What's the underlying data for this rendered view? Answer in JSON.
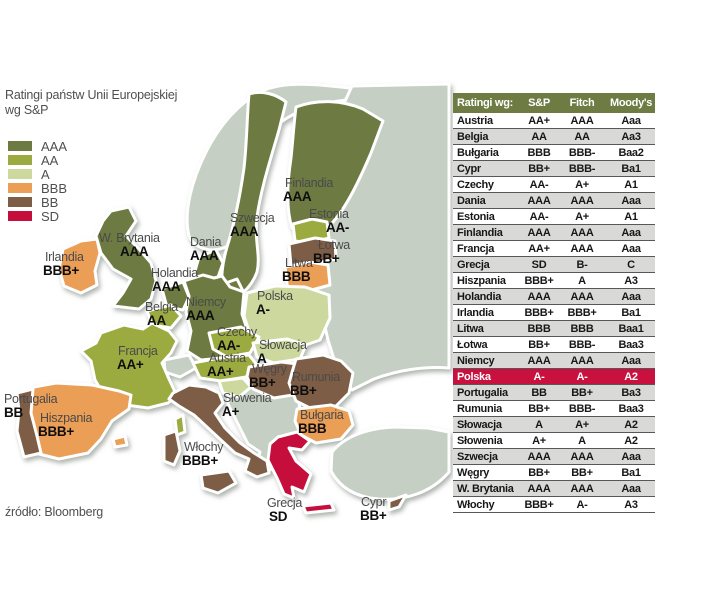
{
  "title": {
    "line1": "Ratingi państw Unii Europejskiej",
    "line2": "wg S&P"
  },
  "legend": {
    "items": [
      {
        "label": "AAA",
        "color": "#6d7a41"
      },
      {
        "label": "AA",
        "color": "#9cab40"
      },
      {
        "label": "A",
        "color": "#cdd89e"
      },
      {
        "label": "BBB",
        "color": "#eb9e55"
      },
      {
        "label": "BB",
        "color": "#7d5d46"
      },
      {
        "label": "SD",
        "color": "#c60e3d"
      }
    ]
  },
  "source": "źródło: Bloomberg",
  "map": {
    "non_eu_color": "#c6cfc3",
    "sea_color": "#ffffff"
  },
  "table": {
    "header": {
      "col0": "Ratingi wg:",
      "col1": "S&P",
      "col2": "Fitch",
      "col3": "Moody's"
    },
    "header_bg": "#6e7b42",
    "alt_row_bg": "#d9dad8",
    "highlight_bg": "#c8113e",
    "rows": [
      {
        "country": "Austria",
        "sp": "AA+",
        "fitch": "AAA",
        "moodys": "Aaa"
      },
      {
        "country": "Belgia",
        "sp": "AA",
        "fitch": "AA",
        "moodys": "Aa3"
      },
      {
        "country": "Bułgaria",
        "sp": "BBB",
        "fitch": "BBB-",
        "moodys": "Baa2"
      },
      {
        "country": "Cypr",
        "sp": "BB+",
        "fitch": "BBB-",
        "moodys": "Ba1"
      },
      {
        "country": "Czechy",
        "sp": "AA-",
        "fitch": "A+",
        "moodys": "A1"
      },
      {
        "country": "Dania",
        "sp": "AAA",
        "fitch": "AAA",
        "moodys": "Aaa"
      },
      {
        "country": "Estonia",
        "sp": "AA-",
        "fitch": "A+",
        "moodys": "A1"
      },
      {
        "country": "Finlandia",
        "sp": "AAA",
        "fitch": "AAA",
        "moodys": "Aaa"
      },
      {
        "country": "Francja",
        "sp": "AA+",
        "fitch": "AAA",
        "moodys": "Aaa"
      },
      {
        "country": "Grecja",
        "sp": "SD",
        "fitch": "B-",
        "moodys": "C"
      },
      {
        "country": "Hiszpania",
        "sp": "BBB+",
        "fitch": "A",
        "moodys": "A3"
      },
      {
        "country": "Holandia",
        "sp": "AAA",
        "fitch": "AAA",
        "moodys": "Aaa"
      },
      {
        "country": "Irlandia",
        "sp": "BBB+",
        "fitch": "BBB+",
        "moodys": "Ba1"
      },
      {
        "country": "Litwa",
        "sp": "BBB",
        "fitch": "BBB",
        "moodys": "Baa1"
      },
      {
        "country": "Łotwa",
        "sp": "BB+",
        "fitch": "BBB-",
        "moodys": "Baa3"
      },
      {
        "country": "Niemcy",
        "sp": "AAA",
        "fitch": "AAA",
        "moodys": "Aaa"
      },
      {
        "country": "Polska",
        "sp": "A-",
        "fitch": "A-",
        "moodys": "A2",
        "highlight": true
      },
      {
        "country": "Portugalia",
        "sp": "BB",
        "fitch": "BB+",
        "moodys": "Ba3"
      },
      {
        "country": "Rumunia",
        "sp": "BB+",
        "fitch": "BBB-",
        "moodys": "Baa3"
      },
      {
        "country": "Słowacja",
        "sp": "A",
        "fitch": "A+",
        "moodys": "A2"
      },
      {
        "country": "Słowenia",
        "sp": "A+",
        "fitch": "A",
        "moodys": "A2"
      },
      {
        "country": "Szwecja",
        "sp": "AAA",
        "fitch": "AAA",
        "moodys": "Aaa"
      },
      {
        "country": "Węgry",
        "sp": "BB+",
        "fitch": "BB+",
        "moodys": "Ba1"
      },
      {
        "country": "W. Brytania",
        "sp": "AAA",
        "fitch": "AAA",
        "moodys": "Aaa"
      },
      {
        "country": "Włochy",
        "sp": "BBB+",
        "fitch": "A-",
        "moodys": "A3"
      }
    ]
  }
}
